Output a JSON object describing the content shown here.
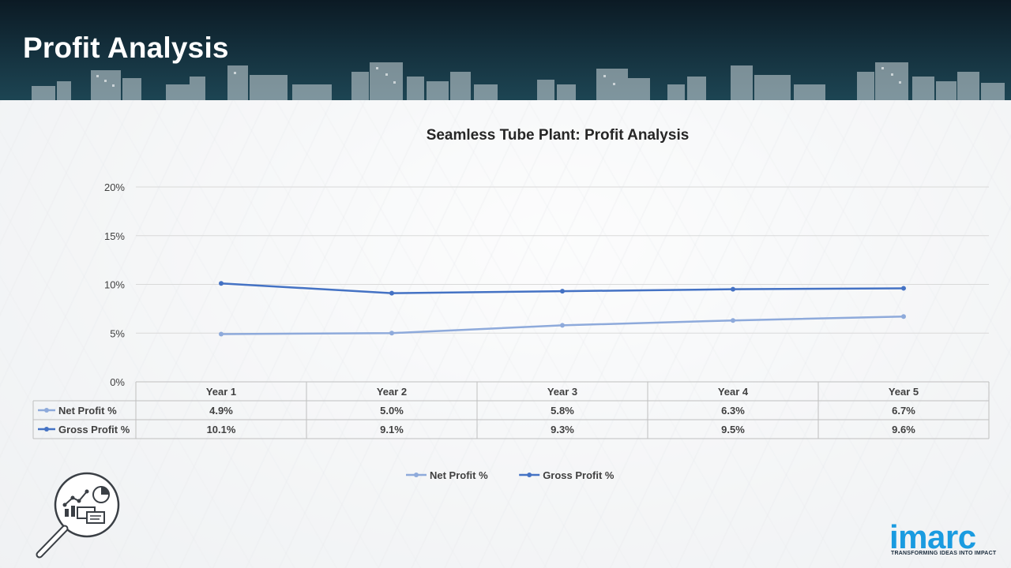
{
  "header": {
    "title": "Profit Analysis"
  },
  "chart_data": {
    "type": "line",
    "title": "Seamless Tube Plant: Profit Analysis",
    "categories": [
      "Year 1",
      "Year 2",
      "Year 3",
      "Year 4",
      "Year 5"
    ],
    "series": [
      {
        "name": "Net Profit %",
        "values": [
          4.9,
          5.0,
          5.8,
          6.3,
          6.7
        ],
        "labels": [
          "4.9%",
          "5.0%",
          "5.8%",
          "6.3%",
          "6.7%"
        ],
        "color": "#8eaadb"
      },
      {
        "name": "Gross Profit %",
        "values": [
          10.1,
          9.1,
          9.3,
          9.5,
          9.6
        ],
        "labels": [
          "10.1%",
          "9.1%",
          "9.3%",
          "9.5%",
          "9.6%"
        ],
        "color": "#4472c4"
      }
    ],
    "ylim": [
      0,
      20
    ],
    "yticks": [
      "0%",
      "5%",
      "10%",
      "15%",
      "20%"
    ],
    "grid": true,
    "legend": "bottom",
    "data_table": true
  },
  "logo": {
    "word": "imarc",
    "tagline": "TRANSFORMING IDEAS INTO IMPACT",
    "color": "#1a9be0"
  },
  "icons": [
    "analysis-magnifier-icon"
  ]
}
